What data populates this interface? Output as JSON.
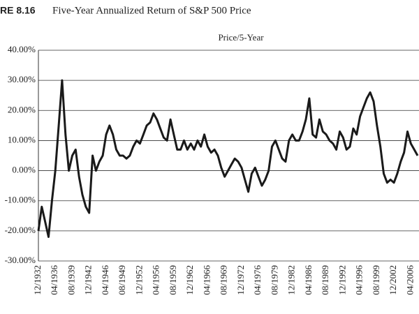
{
  "chart_data": {
    "type": "line",
    "figure_label": "RE 8.16",
    "title": "Five-Year Annualized Return of S&P 500 Price",
    "categories": [
      "12/1932",
      null,
      null,
      null,
      null,
      "04/1936",
      null,
      null,
      null,
      null,
      "08/1939",
      null,
      null,
      null,
      null,
      "12/1942",
      null,
      null,
      null,
      null,
      "04/1946",
      null,
      null,
      null,
      null,
      "08/1949",
      null,
      null,
      null,
      null,
      "12/1952",
      null,
      null,
      null,
      null,
      "04/1956",
      null,
      null,
      null,
      null,
      "08/1959",
      null,
      null,
      null,
      null,
      "12/1962",
      null,
      null,
      null,
      null,
      "04/1966",
      null,
      null,
      null,
      null,
      "08/1969",
      null,
      null,
      null,
      null,
      "12/1972",
      null,
      null,
      null,
      null,
      "04/1976",
      null,
      null,
      null,
      null,
      "08/1979",
      null,
      null,
      null,
      null,
      "12/1982",
      null,
      null,
      null,
      null,
      "04/1986",
      null,
      null,
      null,
      null,
      "08/1989",
      null,
      null,
      null,
      null,
      "12/1992",
      null,
      null,
      null,
      null,
      "04/1996",
      null,
      null,
      null,
      null,
      "08/1999",
      null,
      null,
      null,
      null,
      "12/2002",
      null,
      null,
      null,
      null,
      "04/2006",
      null,
      null
    ],
    "series": [
      {
        "name": "Price/5-Year",
        "color": "#1a1a1a",
        "values": [
          -20,
          -12,
          -17,
          -22,
          -10,
          0,
          15,
          30,
          12,
          0,
          5,
          7,
          -2,
          -8,
          -12,
          -14,
          5,
          0,
          3,
          5,
          12,
          15,
          12,
          7,
          5,
          5,
          4,
          5,
          8,
          10,
          9,
          12,
          15,
          16,
          19,
          17,
          14,
          11,
          10,
          17,
          12,
          7,
          7,
          10,
          7,
          9,
          7,
          10,
          8,
          12,
          8,
          6,
          7,
          5,
          1,
          -2,
          0,
          2,
          4,
          3,
          1,
          -3,
          -7,
          -1,
          1,
          -2,
          -5,
          -3,
          0,
          8,
          10,
          7,
          4,
          3,
          10,
          12,
          10,
          10,
          13,
          17,
          24,
          12,
          11,
          17,
          13,
          12,
          10,
          9,
          7,
          13,
          11,
          7,
          8,
          14,
          12,
          18,
          21,
          24,
          26,
          23,
          15,
          8,
          -1,
          -4,
          -3,
          -4,
          -1,
          3,
          6,
          13,
          9,
          7,
          5
        ]
      }
    ],
    "ylim": [
      -30,
      40
    ],
    "yticks": [
      {
        "value": -30,
        "label": "-30.00%"
      },
      {
        "value": -20,
        "label": "-20.00%"
      },
      {
        "value": -10,
        "label": "-10.00%"
      },
      {
        "value": 0,
        "label": "0.00%"
      },
      {
        "value": 10,
        "label": "10.00%"
      },
      {
        "value": 20,
        "label": "20.00%"
      },
      {
        "value": 30,
        "label": "30.00%"
      },
      {
        "value": 40,
        "label": "40.00%"
      }
    ],
    "grid": true
  }
}
